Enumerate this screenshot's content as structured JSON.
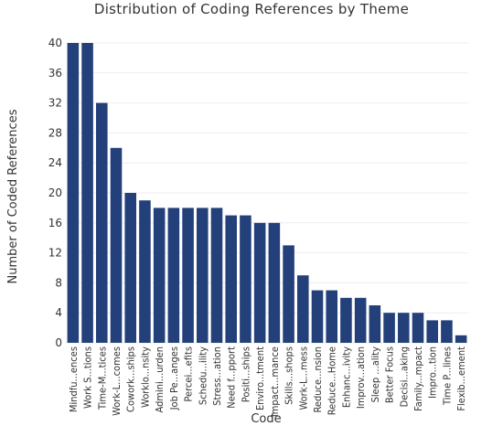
{
  "chart_data": {
    "type": "bar",
    "title": "Distribution of Coding References by Theme",
    "xlabel": "Code",
    "ylabel": "Number of Coded References",
    "ylim": [
      0,
      40
    ],
    "yticks": [
      0,
      4,
      8,
      12,
      16,
      20,
      24,
      28,
      32,
      36,
      40
    ],
    "grid": true,
    "bar_color": "#24407a",
    "categories": [
      "Mindfu...ences",
      "Work S...tions",
      "Time-M...tices",
      "Work-L...comes",
      "Cowork...ships",
      "Worklo...nsity",
      "Admini...urden",
      "Job Pe...anges",
      "Percei...efits",
      "Schedu...ility",
      "Stress...ation",
      "Need f...pport",
      "Positi...ships",
      "Enviro...tment",
      "Impact...mance",
      "Skills...shops",
      "Work-L...mess",
      "Reduce...nsion",
      "Reduce...Home",
      "Enhanc...ivity",
      "Improv...ation",
      "Sleep ...ality",
      "Better Focus",
      "Decisi...aking",
      "Family...mpact",
      "Impro...tion",
      "Time P...lines",
      "Flexib...ement"
    ],
    "values": [
      40,
      40,
      32,
      26,
      20,
      19,
      18,
      18,
      18,
      18,
      18,
      17,
      17,
      16,
      16,
      13,
      9,
      7,
      7,
      6,
      6,
      5,
      4,
      4,
      4,
      3,
      3,
      1
    ]
  }
}
